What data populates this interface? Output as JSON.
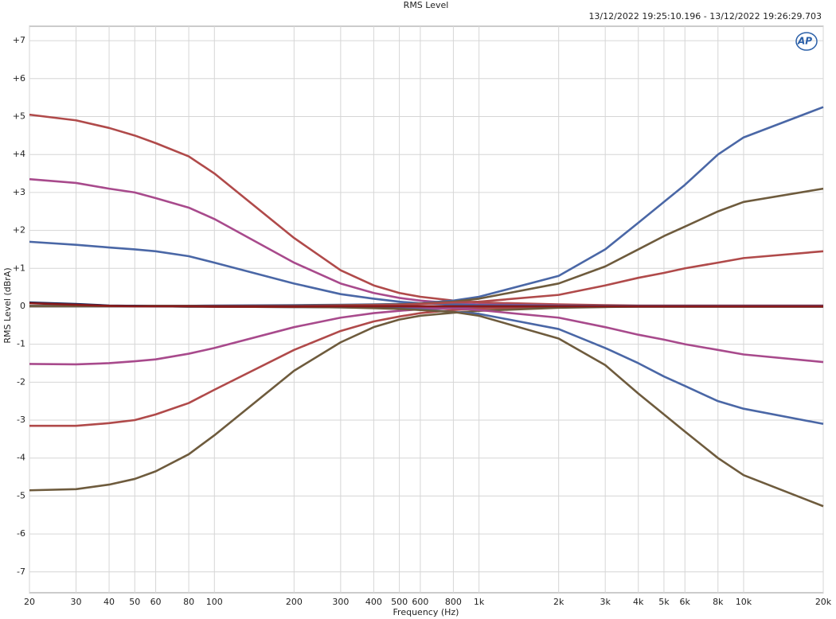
{
  "chart_data": {
    "type": "line",
    "title": "RMS Level",
    "subtitle": "13/12/2022 19:25:10.196 - 13/12/2022 19:26:29.703",
    "logo": "AP",
    "x_label": "Frequency (Hz)",
    "y_label": "RMS Level (dBrA)",
    "x_scale": "log",
    "grid": true,
    "xlim": [
      20,
      20000
    ],
    "ylim": [
      -7.55,
      7.38
    ],
    "xticks": [
      20,
      30,
      40,
      50,
      60,
      80,
      100,
      200,
      300,
      400,
      500,
      600,
      800,
      {
        "value": 1000,
        "label": "1k"
      },
      {
        "value": 2000,
        "label": "2k"
      },
      {
        "value": 3000,
        "label": "3k"
      },
      {
        "value": 4000,
        "label": "4k"
      },
      {
        "value": 5000,
        "label": "5k"
      },
      {
        "value": 6000,
        "label": "6k"
      },
      {
        "value": 8000,
        "label": "8k"
      },
      {
        "value": 10000,
        "label": "10k"
      },
      {
        "value": 20000,
        "label": "20k"
      }
    ],
    "yticks": [
      {
        "value": 7,
        "label": "+7"
      },
      {
        "value": 6,
        "label": "+6"
      },
      {
        "value": 5,
        "label": "+5"
      },
      {
        "value": 4,
        "label": "+4"
      },
      {
        "value": 3,
        "label": "+3"
      },
      {
        "value": 2,
        "label": "+2"
      },
      {
        "value": 1,
        "label": "+1"
      },
      0,
      -1,
      -2,
      -3,
      -4,
      -5,
      -6,
      -7
    ],
    "x": [
      20,
      30,
      40,
      50,
      60,
      80,
      100,
      200,
      300,
      400,
      500,
      600,
      800,
      1000,
      2000,
      3000,
      4000,
      5000,
      6000,
      8000,
      10000,
      20000
    ],
    "series": [
      {
        "color": "#b04a4a",
        "values": [
          5.05,
          4.9,
          4.7,
          4.5,
          4.3,
          3.95,
          3.5,
          1.8,
          0.95,
          0.55,
          0.35,
          0.25,
          0.15,
          0.1,
          0.05,
          0.03,
          0.02,
          0.02,
          0.02,
          0.02,
          0.02,
          0.02
        ]
      },
      {
        "color": "#a84a8c",
        "values": [
          3.35,
          3.25,
          3.1,
          3.0,
          2.85,
          2.6,
          2.3,
          1.15,
          0.6,
          0.35,
          0.22,
          0.15,
          0.08,
          0.05,
          0.02,
          0.01,
          0.01,
          0.01,
          0.01,
          0.01,
          0.01,
          0.01
        ]
      },
      {
        "color": "#4a67a6",
        "values": [
          1.7,
          1.62,
          1.55,
          1.5,
          1.45,
          1.32,
          1.15,
          0.6,
          0.32,
          0.2,
          0.12,
          0.08,
          0.05,
          0.03,
          0.01,
          0.01,
          0.01,
          0.01,
          0.01,
          0.01,
          0.01,
          0.01
        ]
      },
      {
        "color": "#a84a8c",
        "values": [
          -1.52,
          -1.53,
          -1.5,
          -1.45,
          -1.4,
          -1.25,
          -1.1,
          -0.55,
          -0.3,
          -0.18,
          -0.12,
          -0.08,
          -0.05,
          -0.03,
          -0.01,
          -0.01,
          -0.01,
          -0.01,
          -0.01,
          -0.01,
          -0.01,
          -0.01
        ]
      },
      {
        "color": "#b04a4a",
        "values": [
          -3.15,
          -3.15,
          -3.08,
          -3.0,
          -2.85,
          -2.55,
          -2.2,
          -1.15,
          -0.65,
          -0.4,
          -0.27,
          -0.18,
          -0.1,
          -0.06,
          -0.02,
          -0.01,
          -0.01,
          -0.01,
          -0.01,
          -0.01,
          -0.01,
          -0.01
        ]
      },
      {
        "color": "#6e5b3d",
        "values": [
          -4.85,
          -4.82,
          -4.7,
          -4.55,
          -4.35,
          -3.9,
          -3.4,
          -1.7,
          -0.95,
          -0.55,
          -0.35,
          -0.25,
          -0.17,
          -0.12,
          -0.04,
          -0.02,
          -0.01,
          -0.01,
          -0.01,
          -0.01,
          -0.01,
          -0.01
        ]
      },
      {
        "color": "#4a67a6",
        "values": [
          0.01,
          0.01,
          0.01,
          0.01,
          0.01,
          0.01,
          0.02,
          0.03,
          0.04,
          0.05,
          0.06,
          0.08,
          0.15,
          0.25,
          0.8,
          1.5,
          2.2,
          2.75,
          3.2,
          4.0,
          4.45,
          5.25
        ]
      },
      {
        "color": "#6e5b3d",
        "values": [
          0.01,
          0.01,
          0.01,
          0.01,
          0.01,
          0.01,
          0.01,
          0.02,
          0.03,
          0.04,
          0.05,
          0.07,
          0.12,
          0.2,
          0.6,
          1.05,
          1.5,
          1.85,
          2.1,
          2.5,
          2.75,
          3.1
        ]
      },
      {
        "color": "#b04a4a",
        "values": [
          0.0,
          0.0,
          0.0,
          0.0,
          0.0,
          0.0,
          0.01,
          0.01,
          0.02,
          0.03,
          0.04,
          0.06,
          0.1,
          0.12,
          0.3,
          0.55,
          0.75,
          0.88,
          1.0,
          1.15,
          1.27,
          1.45
        ]
      },
      {
        "color": "#a84a8c",
        "values": [
          0.0,
          0.0,
          0.0,
          0.0,
          0.0,
          0.0,
          -0.01,
          -0.01,
          -0.02,
          -0.02,
          -0.03,
          -0.04,
          -0.05,
          -0.1,
          -0.3,
          -0.55,
          -0.75,
          -0.88,
          -1.0,
          -1.15,
          -1.27,
          -1.47
        ]
      },
      {
        "color": "#4a67a6",
        "values": [
          0.0,
          0.0,
          0.0,
          0.0,
          0.0,
          -0.01,
          -0.01,
          -0.02,
          -0.03,
          -0.04,
          -0.06,
          -0.08,
          -0.15,
          -0.2,
          -0.6,
          -1.1,
          -1.5,
          -1.85,
          -2.1,
          -2.5,
          -2.7,
          -3.1
        ]
      },
      {
        "color": "#6e5b3d",
        "values": [
          0.0,
          0.0,
          0.0,
          0.0,
          0.0,
          -0.01,
          -0.01,
          -0.02,
          -0.03,
          -0.05,
          -0.07,
          -0.1,
          -0.15,
          -0.25,
          -0.85,
          -1.55,
          -2.3,
          -2.85,
          -3.3,
          -4.0,
          -4.45,
          -5.27
        ]
      },
      {
        "color": "#1a2a5a",
        "values": [
          0.1,
          0.06,
          0.02,
          0.01,
          0.0,
          0.0,
          0.0,
          0.0,
          0.0,
          0.0,
          0.0,
          0.0,
          0.0,
          0.0,
          0.0,
          0.0,
          0.0,
          0.0,
          0.0,
          0.0,
          0.0,
          0.0
        ]
      },
      {
        "color": "#8b1a1a",
        "values": [
          0.08,
          0.04,
          0.01,
          0.0,
          0.0,
          0.0,
          -0.01,
          -0.01,
          0.0,
          0.0,
          0.0,
          0.0,
          0.0,
          0.0,
          0.0,
          0.0,
          0.0,
          0.0,
          0.0,
          0.0,
          0.0,
          0.0
        ]
      }
    ]
  }
}
